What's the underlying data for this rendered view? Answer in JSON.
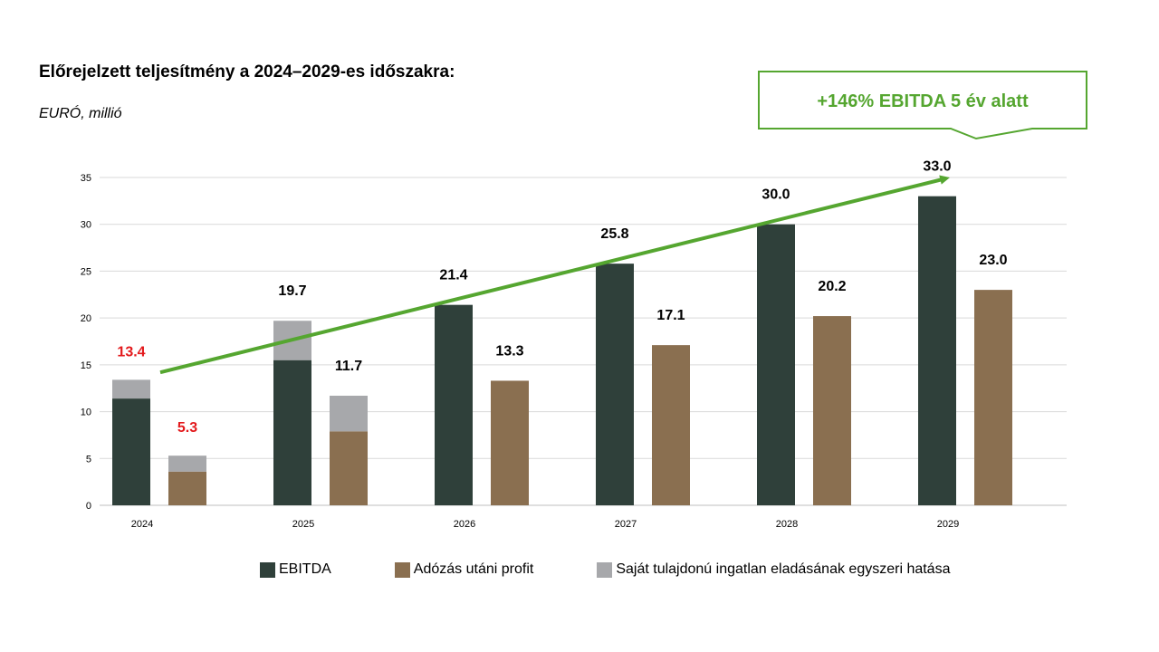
{
  "title": "Előrejelzett teljesítmény a 2024–2029-es időszakra:",
  "subtitle": "EURÓ, millió",
  "callout": "+146% EBITDA 5 év alatt",
  "colors": {
    "ebitda": "#2f403a",
    "profit": "#8a6f50",
    "oneoff": "#a7a8ab",
    "arrow": "#55a630",
    "label_highlight": "#e3191c",
    "label": "#000000"
  },
  "chart_data": {
    "type": "bar",
    "stacked": true,
    "categories": [
      "2024",
      "2025",
      "2026",
      "2027",
      "2028",
      "2029"
    ],
    "ylim": [
      0,
      35
    ],
    "yticks": [
      0,
      5,
      10,
      15,
      20,
      25,
      30,
      35
    ],
    "grid": true,
    "legend_placement": "bottom",
    "series": [
      {
        "name": "EBITDA",
        "values": [
          11.4,
          15.5,
          21.4,
          25.8,
          30.0,
          33.0
        ]
      },
      {
        "name": "Adózás utáni profit",
        "values": [
          3.6,
          7.9,
          13.3,
          17.1,
          20.2,
          23.0
        ]
      },
      {
        "name": "Saját tulajdonú ingatlan eladásának egyszeri hatása",
        "ebitda_values": [
          2.0,
          4.2,
          0,
          0,
          0,
          0
        ],
        "profit_values": [
          1.7,
          3.8,
          0,
          0,
          0,
          0
        ]
      }
    ],
    "ebitda_labels": [
      "13.4",
      "19.7",
      "21.4",
      "25.8",
      "30.0",
      "33.0"
    ],
    "profit_labels": [
      "5.3",
      "11.7",
      "13.3",
      "17.1",
      "20.2",
      "23.0"
    ],
    "highlighted_labels_category": "2024",
    "trend_arrow": {
      "from": [
        "2024",
        14.2
      ],
      "to": [
        "2029",
        35
      ]
    }
  }
}
